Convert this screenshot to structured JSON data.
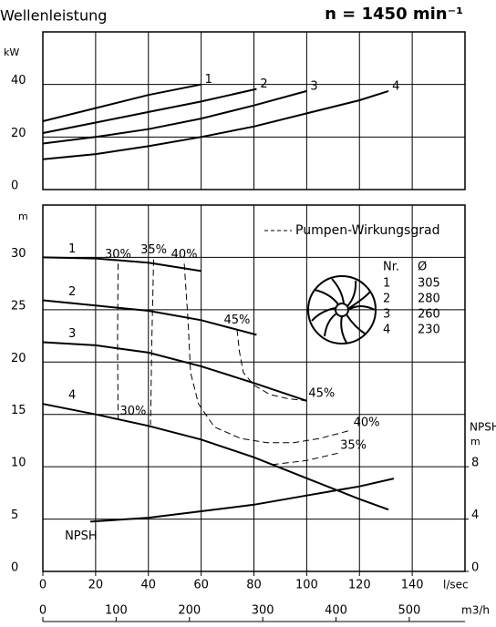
{
  "chart_data": [
    {
      "type": "line",
      "title": "Wellenleistung",
      "subtitle": "n = 1450 min⁻¹",
      "ylabel": "kW",
      "xlim": [
        0,
        160
      ],
      "xticks": [
        0,
        20,
        40,
        60,
        80,
        100,
        120,
        140
      ],
      "ylim": [
        0,
        60
      ],
      "yticks": [
        0,
        20,
        40
      ],
      "grid": true,
      "series": [
        {
          "name": "1",
          "color": "#000000",
          "x": [
            0,
            20,
            40,
            60
          ],
          "values": [
            26,
            31,
            36,
            40
          ]
        },
        {
          "name": "2",
          "color": "#000000",
          "x": [
            0,
            20,
            40,
            60,
            81
          ],
          "values": [
            21.5,
            25.5,
            29.5,
            33.5,
            38.3
          ]
        },
        {
          "name": "3",
          "color": "#000000",
          "x": [
            0,
            20,
            40,
            60,
            80,
            100
          ],
          "values": [
            17.5,
            20,
            23,
            27,
            32,
            37.5
          ]
        },
        {
          "name": "4",
          "color": "#000000",
          "x": [
            0,
            20,
            40,
            60,
            80,
            100,
            120,
            131
          ],
          "values": [
            11.5,
            13.5,
            16.5,
            20,
            24,
            29,
            34,
            37.5
          ]
        }
      ]
    },
    {
      "type": "line",
      "ylabel": "m",
      "xlabel": "l/sec",
      "x2label": "m3/h",
      "y2label": "NPSH",
      "y2unit": "m",
      "xlim": [
        0,
        160
      ],
      "xticks": [
        0,
        20,
        40,
        60,
        80,
        100,
        120,
        140
      ],
      "x2lim": [
        0,
        576
      ],
      "x2ticks": [
        0,
        100,
        200,
        300,
        400,
        500
      ],
      "ylim": [
        0,
        35
      ],
      "yticks": [
        0,
        5,
        10,
        15,
        20,
        25,
        30
      ],
      "y2lim": [
        0,
        28
      ],
      "y2ticks": [
        0,
        4,
        8
      ],
      "grid": true,
      "legend_label": "Pumpen-Wirkungsgrad",
      "table": {
        "headers": [
          "Nr.",
          "Ø"
        ],
        "rows": [
          [
            "1",
            "305"
          ],
          [
            "2",
            "280"
          ],
          [
            "3",
            "260"
          ],
          [
            "4",
            "230"
          ]
        ]
      },
      "series": [
        {
          "name": "1",
          "color": "#000000",
          "x": [
            0,
            20,
            40,
            60
          ],
          "values": [
            30,
            29.9,
            29.5,
            28.7
          ]
        },
        {
          "name": "2",
          "color": "#000000",
          "x": [
            0,
            20,
            40,
            60,
            81
          ],
          "values": [
            25.9,
            25.4,
            24.9,
            24,
            22.6
          ]
        },
        {
          "name": "3",
          "color": "#000000",
          "x": [
            0,
            20,
            40,
            60,
            80,
            100
          ],
          "values": [
            21.9,
            21.6,
            20.9,
            19.6,
            18,
            16.3
          ]
        },
        {
          "name": "4",
          "color": "#000000",
          "x": [
            0,
            20,
            40,
            60,
            80,
            100,
            120,
            131
          ],
          "values": [
            16,
            15,
            13.9,
            12.6,
            10.9,
            8.9,
            6.9,
            5.9
          ]
        },
        {
          "name": "NPSH",
          "axis": "y2",
          "color": "#000000",
          "x": [
            18,
            40,
            60,
            80,
            100,
            120,
            133
          ],
          "values": [
            3.8,
            4.1,
            4.6,
            5.1,
            5.8,
            6.5,
            7.1
          ]
        },
        {
          "name": "30%",
          "line_style": "dashed",
          "color": "#000000",
          "x": [
            28.5,
            28.3,
            28.5
          ],
          "values": [
            29.4,
            22,
            14.6
          ]
        },
        {
          "name": "35%",
          "line_style": "dashed",
          "color": "#000000",
          "x": [
            42,
            41.3,
            40.8,
            60,
            87,
            100,
            112
          ],
          "values": [
            29.8,
            22,
            14,
            null,
            10.2,
            10.6,
            11.3
          ]
        },
        {
          "name": "40%",
          "line_style": "dashed",
          "color": "#000000",
          "x": [
            53.6,
            55,
            56,
            59,
            65,
            75,
            85,
            95,
            105,
            117
          ],
          "values": [
            29.4,
            24,
            19,
            16,
            13.8,
            12.7,
            12.3,
            12.3,
            12.7,
            13.5
          ]
        },
        {
          "name": "45%",
          "line_style": "dashed",
          "color": "#000000",
          "x": [
            73.6,
            74.5,
            76,
            80,
            86,
            93,
            100
          ],
          "values": [
            23.1,
            21,
            19,
            17.8,
            16.9,
            16.5,
            16.3
          ]
        }
      ]
    }
  ]
}
